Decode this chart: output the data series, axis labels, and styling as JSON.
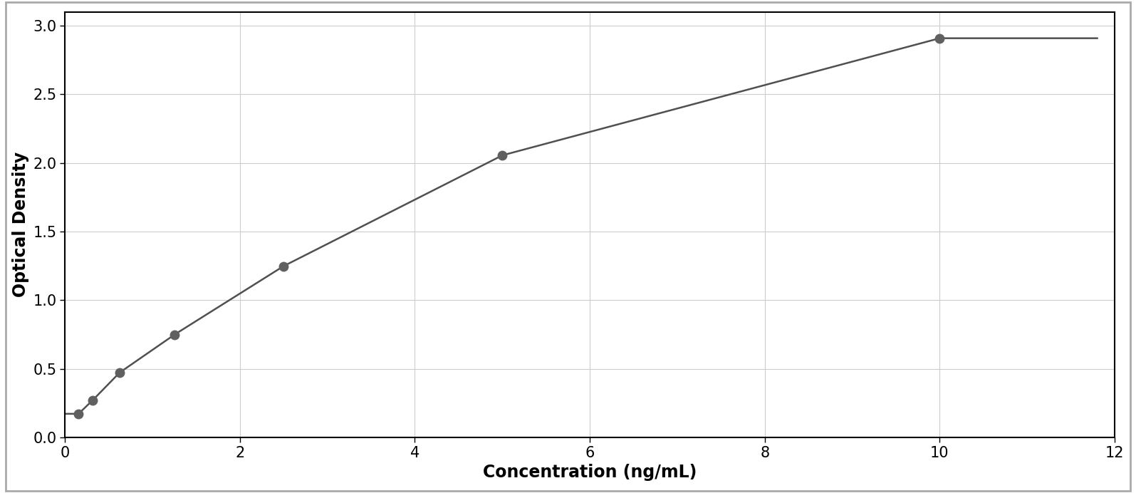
{
  "x_data": [
    0.156,
    0.313,
    0.625,
    1.25,
    2.5,
    5.0,
    10.0
  ],
  "y_data": [
    0.172,
    0.268,
    0.472,
    0.748,
    1.248,
    2.055,
    2.908
  ],
  "marker_color": "#606060",
  "line_color": "#505050",
  "marker_size": 9,
  "line_width": 1.8,
  "xlabel": "Concentration (ng/mL)",
  "ylabel": "Optical Density",
  "xlim": [
    0,
    12
  ],
  "ylim": [
    0,
    3.1
  ],
  "xticks": [
    0,
    2,
    4,
    6,
    8,
    10,
    12
  ],
  "yticks": [
    0,
    0.5,
    1.0,
    1.5,
    2.0,
    2.5,
    3.0
  ],
  "xlabel_fontsize": 17,
  "ylabel_fontsize": 17,
  "tick_fontsize": 15,
  "xlabel_fontweight": "bold",
  "ylabel_fontweight": "bold",
  "grid_color": "#cccccc",
  "grid_linewidth": 0.8,
  "background_color": "#ffffff",
  "figure_bg": "#ffffff",
  "spine_color": "#000000",
  "border_color": "#aaaaaa"
}
